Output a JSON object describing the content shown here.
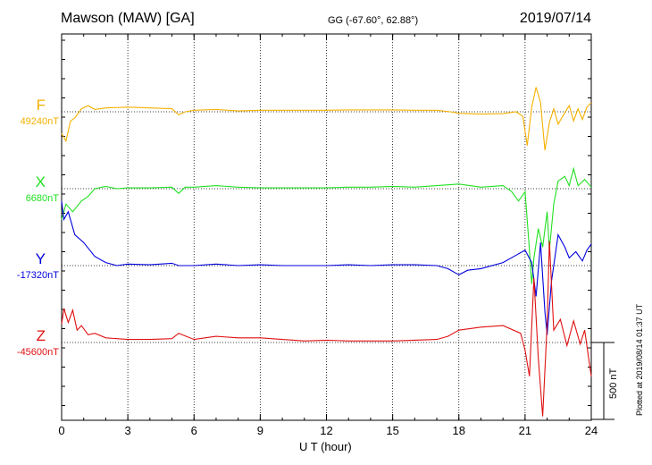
{
  "header": {
    "station": "Mawson (MAW)  [GA]",
    "coords": "GG (-67.60°,  62.88°)",
    "date": "2019/07/14"
  },
  "footer": {
    "plotted": "Plotted at 2019/08/14 01:37 UT"
  },
  "scale": {
    "label": "500 nT",
    "nT": 500
  },
  "colors": {
    "F": "#f5b000",
    "X": "#22e022",
    "Y": "#0000dd",
    "Z": "#e01010"
  },
  "chart_data": {
    "type": "line",
    "xlabel": "U T (hour)",
    "xlim": [
      0,
      24
    ],
    "xticks": [
      0,
      3,
      6,
      9,
      12,
      15,
      18,
      21,
      24
    ],
    "grid": "dotted-vertical",
    "series": [
      {
        "name": "F",
        "baseline_label": "49240nT",
        "baseline": 49240,
        "x": [
          0,
          0.2,
          0.4,
          0.6,
          0.9,
          1.2,
          1.5,
          2,
          3,
          4,
          5,
          5.3,
          5.6,
          6,
          7,
          8,
          9,
          10,
          11,
          12,
          13,
          14,
          15,
          16,
          17,
          17.6,
          18,
          19,
          20,
          20.6,
          20.9,
          21.1,
          21.3,
          21.5,
          21.7,
          21.9,
          22.1,
          22.3,
          22.5,
          22.7,
          23,
          23.2,
          23.4,
          23.6,
          23.8,
          24
        ],
        "values": [
          -140,
          -190,
          -60,
          -40,
          20,
          40,
          15,
          25,
          30,
          25,
          20,
          -20,
          0,
          10,
          15,
          5,
          10,
          10,
          10,
          10,
          12,
          12,
          12,
          10,
          10,
          0,
          -10,
          -15,
          -12,
          0,
          -30,
          -220,
          30,
          160,
          60,
          -250,
          -70,
          20,
          -80,
          -30,
          40,
          -60,
          20,
          -50,
          30,
          60
        ]
      },
      {
        "name": "X",
        "baseline_label": "6680nT",
        "baseline": 6680,
        "x": [
          0,
          0.2,
          0.5,
          0.9,
          1.2,
          1.5,
          2,
          2.5,
          3,
          4,
          5,
          5.3,
          5.6,
          6,
          7,
          8,
          9,
          10,
          11,
          12,
          13,
          14,
          15,
          16,
          17,
          18,
          19,
          20,
          20.4,
          20.7,
          21,
          21.2,
          21.3,
          21.4,
          21.6,
          21.8,
          22,
          22.1,
          22.3,
          22.5,
          22.8,
          23,
          23.2,
          23.4,
          23.7,
          24
        ],
        "values": [
          -200,
          -100,
          -150,
          -80,
          -50,
          0,
          15,
          0,
          5,
          5,
          10,
          -30,
          10,
          10,
          20,
          10,
          5,
          5,
          5,
          5,
          10,
          10,
          15,
          10,
          20,
          30,
          10,
          20,
          -20,
          -80,
          -20,
          -400,
          -620,
          -450,
          -260,
          -380,
          -150,
          -400,
          -100,
          50,
          80,
          20,
          130,
          20,
          60,
          10
        ]
      },
      {
        "name": "Y",
        "baseline_label": "-17320nT",
        "baseline": -17320,
        "x": [
          0,
          0.1,
          0.3,
          0.6,
          1,
          1.5,
          2,
          2.5,
          3,
          4,
          5,
          5.3,
          6,
          7,
          8,
          9,
          10,
          11,
          12,
          13,
          14,
          15,
          16,
          17,
          17.5,
          18,
          18.4,
          19,
          20,
          20.5,
          21,
          21.3,
          21.5,
          21.7,
          21.9,
          22,
          22.2,
          22.5,
          22.8,
          23,
          23.3,
          23.6,
          23.8,
          24
        ],
        "values": [
          420,
          300,
          350,
          200,
          150,
          60,
          20,
          0,
          10,
          5,
          15,
          0,
          0,
          10,
          0,
          5,
          0,
          0,
          0,
          5,
          0,
          5,
          5,
          0,
          -20,
          -60,
          -30,
          -20,
          20,
          60,
          100,
          20,
          -200,
          150,
          -300,
          -450,
          -100,
          200,
          120,
          50,
          90,
          30,
          100,
          140
        ]
      },
      {
        "name": "Z",
        "baseline_label": "-45600nT",
        "baseline": -45600,
        "x": [
          0,
          0.1,
          0.3,
          0.5,
          0.7,
          0.9,
          1.2,
          1.5,
          2,
          3,
          4,
          5,
          5.3,
          6,
          7,
          8,
          9,
          10,
          11,
          12,
          13,
          14,
          15,
          16,
          17,
          17.5,
          18,
          19,
          20,
          20.8,
          21,
          21.2,
          21.4,
          21.6,
          21.8,
          22,
          22.1,
          22.3,
          22.6,
          22.9,
          23.2,
          23.5,
          23.7,
          24
        ],
        "values": [
          120,
          220,
          130,
          210,
          80,
          110,
          50,
          60,
          30,
          20,
          20,
          25,
          60,
          20,
          40,
          30,
          30,
          20,
          10,
          15,
          10,
          10,
          10,
          15,
          20,
          40,
          80,
          100,
          110,
          60,
          -50,
          -220,
          420,
          -100,
          -480,
          120,
          660,
          80,
          150,
          -20,
          140,
          -10,
          80,
          -220
        ]
      }
    ]
  }
}
